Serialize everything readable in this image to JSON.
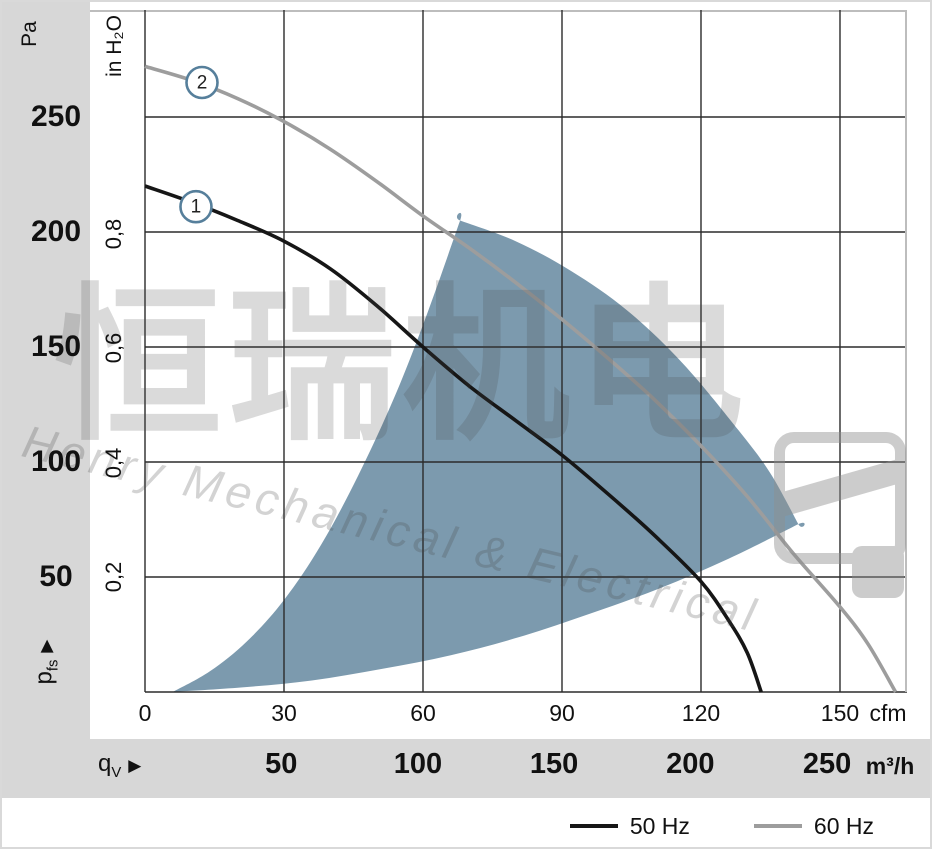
{
  "chart_data": {
    "type": "line",
    "x_axis": {
      "quantity_symbol": "q",
      "quantity_sub": "V",
      "unit_primary": "cfm",
      "ticks_cfm": [
        0,
        30,
        60,
        90,
        120,
        150
      ],
      "unit_secondary": "m³/h",
      "ticks_m3h": [
        {
          "label": "50",
          "cfm": 29.4
        },
        {
          "label": "100",
          "cfm": 58.9
        },
        {
          "label": "150",
          "cfm": 88.3
        },
        {
          "label": "200",
          "cfm": 117.7
        },
        {
          "label": "250",
          "cfm": 147.2
        }
      ]
    },
    "y_axis": {
      "quantity_symbol": "p",
      "quantity_sub": "fs",
      "unit_primary": "Pa",
      "ticks_pa": [
        250,
        200,
        150,
        100,
        50
      ],
      "grid_pa": [
        0,
        50,
        100,
        150,
        200,
        250
      ],
      "unit_secondary": "in H₂O",
      "ticks_inh2o": [
        {
          "label": "0,8",
          "pa": 199.3
        },
        {
          "label": "0,6",
          "pa": 149.4
        },
        {
          "label": "0,4",
          "pa": 99.6
        },
        {
          "label": "0,2",
          "pa": 49.8
        }
      ]
    },
    "series": [
      {
        "name": "50 Hz",
        "marker": "1",
        "color": "#161616",
        "marker_pos_cfm_pa": [
          11,
          211
        ],
        "points_cfm_pa": [
          [
            0,
            220
          ],
          [
            10,
            213
          ],
          [
            20,
            205
          ],
          [
            30,
            196
          ],
          [
            40,
            184
          ],
          [
            50,
            168
          ],
          [
            60,
            150
          ],
          [
            70,
            133
          ],
          [
            80,
            118
          ],
          [
            90,
            103
          ],
          [
            100,
            86
          ],
          [
            110,
            68
          ],
          [
            120,
            48
          ],
          [
            126,
            31
          ],
          [
            130,
            17
          ],
          [
            133,
            0
          ]
        ]
      },
      {
        "name": "60 Hz",
        "marker": "2",
        "color": "#9d9d9d",
        "marker_pos_cfm_pa": [
          12.3,
          265
        ],
        "points_cfm_pa": [
          [
            0,
            272
          ],
          [
            10,
            266
          ],
          [
            20,
            258
          ],
          [
            30,
            248
          ],
          [
            40,
            236
          ],
          [
            50,
            222
          ],
          [
            60,
            207
          ],
          [
            70,
            193
          ],
          [
            80,
            178
          ],
          [
            90,
            162
          ],
          [
            100,
            145
          ],
          [
            110,
            127
          ],
          [
            120,
            107
          ],
          [
            130,
            85
          ],
          [
            140,
            60
          ],
          [
            150,
            37
          ],
          [
            156,
            21
          ],
          [
            162,
            0
          ]
        ]
      }
    ],
    "operating_region": {
      "color": "#7c9aae",
      "points_cfm_pa": [
        [
          6,
          0
        ],
        [
          14,
          9
        ],
        [
          22,
          22
        ],
        [
          30,
          40
        ],
        [
          38,
          64
        ],
        [
          46,
          94
        ],
        [
          54,
          129
        ],
        [
          61,
          165
        ],
        [
          68,
          205
        ],
        [
          68,
          205
        ],
        [
          80,
          196
        ],
        [
          92,
          183
        ],
        [
          104,
          166
        ],
        [
          116,
          143
        ],
        [
          128,
          114
        ],
        [
          135,
          95
        ],
        [
          141,
          73
        ],
        [
          141,
          73
        ],
        [
          126,
          58
        ],
        [
          111,
          45
        ],
        [
          96,
          34
        ],
        [
          81,
          24
        ],
        [
          66,
          16
        ],
        [
          51,
          10
        ],
        [
          36,
          5
        ],
        [
          21,
          2
        ],
        [
          6,
          0
        ]
      ]
    },
    "marker_circle_color": "#567f9b",
    "legend": [
      {
        "label": "50 Hz",
        "color": "#161616"
      },
      {
        "label": "60 Hz",
        "color": "#9d9d9d"
      }
    ]
  },
  "icons": {
    "axis_arrow": "▶"
  },
  "watermark": {
    "cjk_text": "恒瑞机电",
    "latin_text": "Henry Mechanical & Electrical"
  }
}
